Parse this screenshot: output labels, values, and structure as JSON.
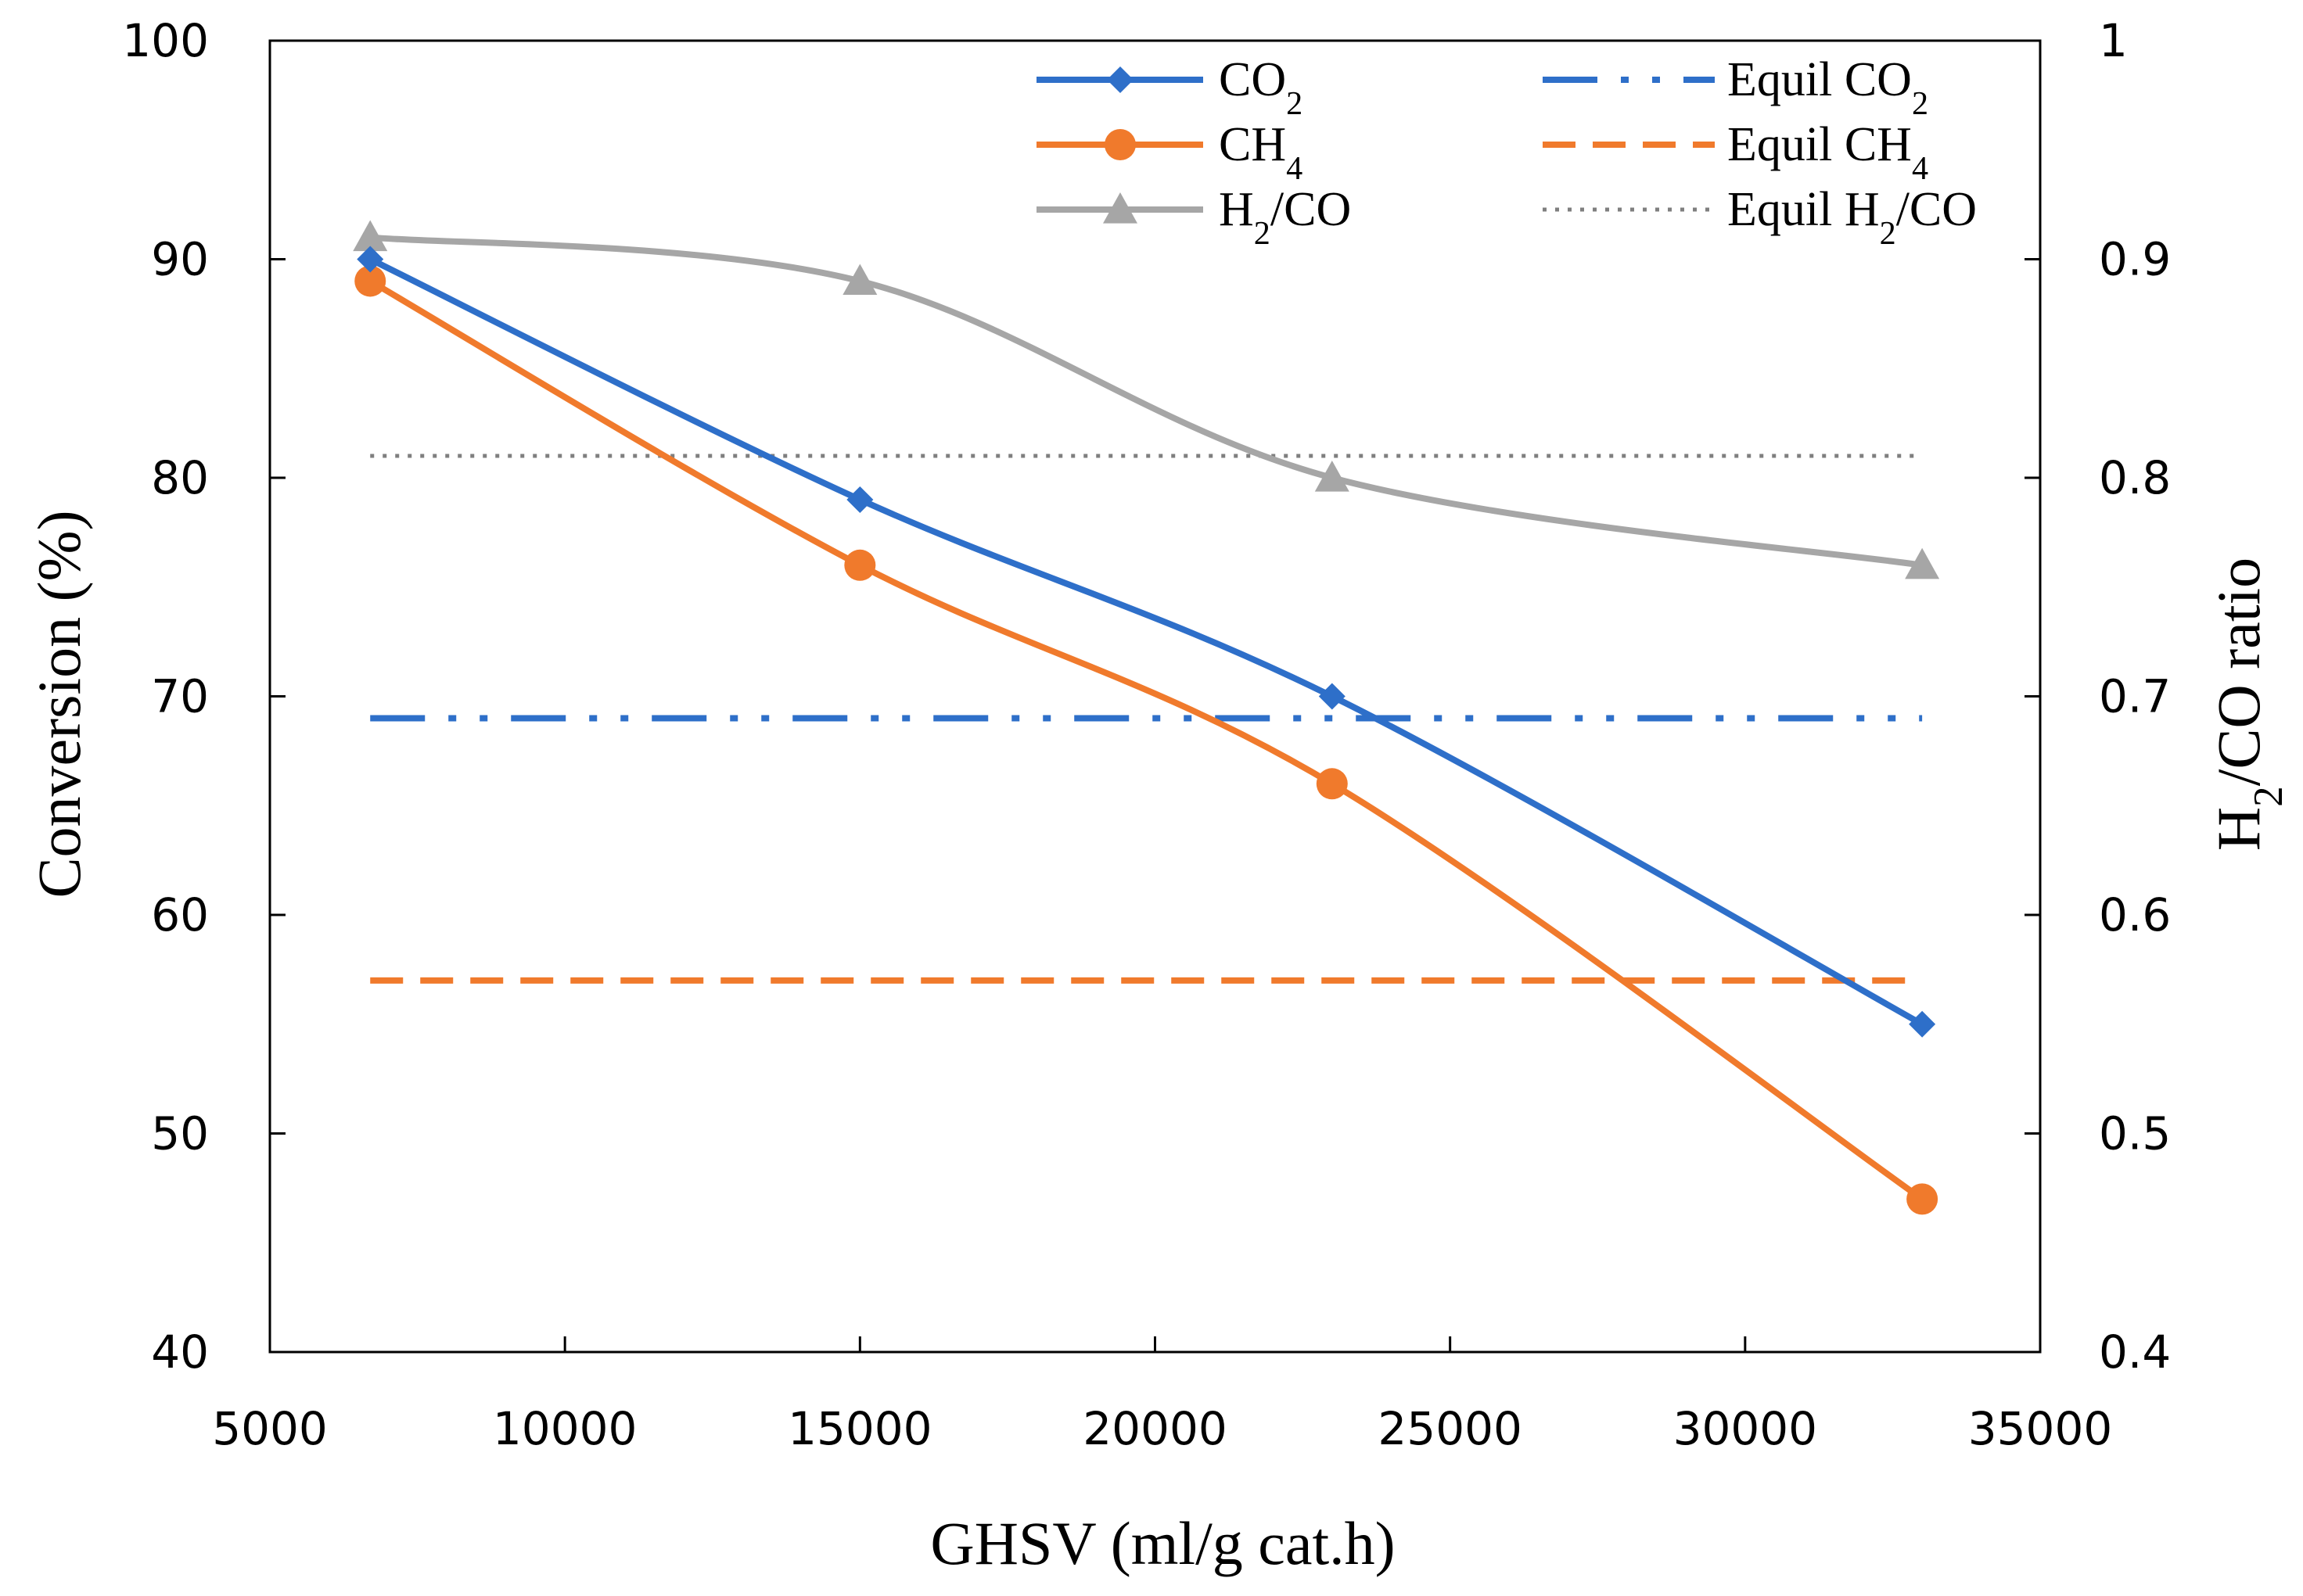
{
  "chart_data": {
    "type": "line",
    "title": "",
    "xlabel": "GHSV (ml/g cat.h)",
    "ylabel": "Conversion (%)",
    "y2label": "H₂/CO ratio",
    "xlim": [
      5000,
      35000
    ],
    "ylim": [
      40,
      100
    ],
    "y2lim": [
      0.4,
      1
    ],
    "x_ticks": [
      5000,
      10000,
      15000,
      20000,
      25000,
      30000,
      35000
    ],
    "y_ticks": [
      40,
      50,
      60,
      70,
      80,
      90,
      100
    ],
    "y2_ticks": [
      "0.4",
      "0.5",
      "0.6",
      "0.7",
      "0.8",
      "0.9",
      "1"
    ],
    "grid": false,
    "legend_position": "top-right",
    "colors": {
      "co2": "#2e6fc9",
      "ch4": "#f07a2c",
      "h2co": "#a6a6a6",
      "equil_h2co": "#7f7f7f"
    },
    "x": [
      6700,
      15000,
      23000,
      33000
    ],
    "series": [
      {
        "key": "co2",
        "name": "CO₂",
        "axis": "left",
        "marker": "diamond",
        "values": [
          90,
          79,
          70,
          55
        ]
      },
      {
        "key": "ch4",
        "name": "CH₄",
        "axis": "left",
        "marker": "circle",
        "values": [
          89,
          76,
          66,
          47
        ]
      },
      {
        "key": "h2co",
        "name": "H₂/CO",
        "axis": "right",
        "marker": "triangle",
        "values": [
          0.91,
          0.89,
          0.8,
          0.76
        ]
      },
      {
        "key": "equil_co2",
        "name": "Equil CO₂",
        "axis": "left",
        "dash": "long-dash-dot-dot",
        "x_range": [
          6700,
          33000
        ],
        "value": 69
      },
      {
        "key": "equil_ch4",
        "name": "Equil CH₄",
        "axis": "left",
        "dash": "dash",
        "x_range": [
          6700,
          33000
        ],
        "value": 57
      },
      {
        "key": "equil_h2co",
        "name": "Equil H₂/CO",
        "axis": "right",
        "dash": "dot",
        "x_range": [
          6700,
          33000
        ],
        "value": 0.81
      }
    ]
  }
}
